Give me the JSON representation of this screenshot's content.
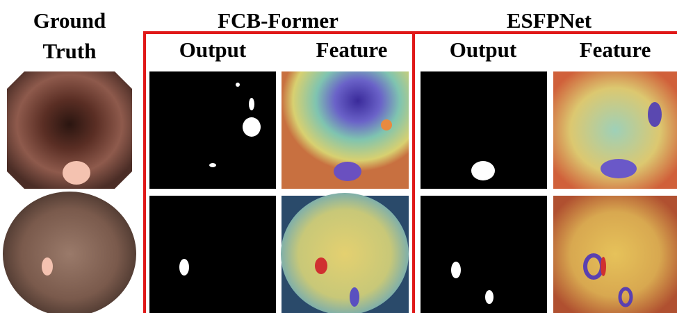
{
  "header": {
    "ground_truth": [
      "Ground",
      "Truth"
    ],
    "groups": [
      {
        "title": "FCB-Former",
        "columns": [
          "Output",
          "Feature"
        ]
      },
      {
        "title": "ESFPNet",
        "columns": [
          "Output",
          "Feature"
        ]
      }
    ]
  }
}
